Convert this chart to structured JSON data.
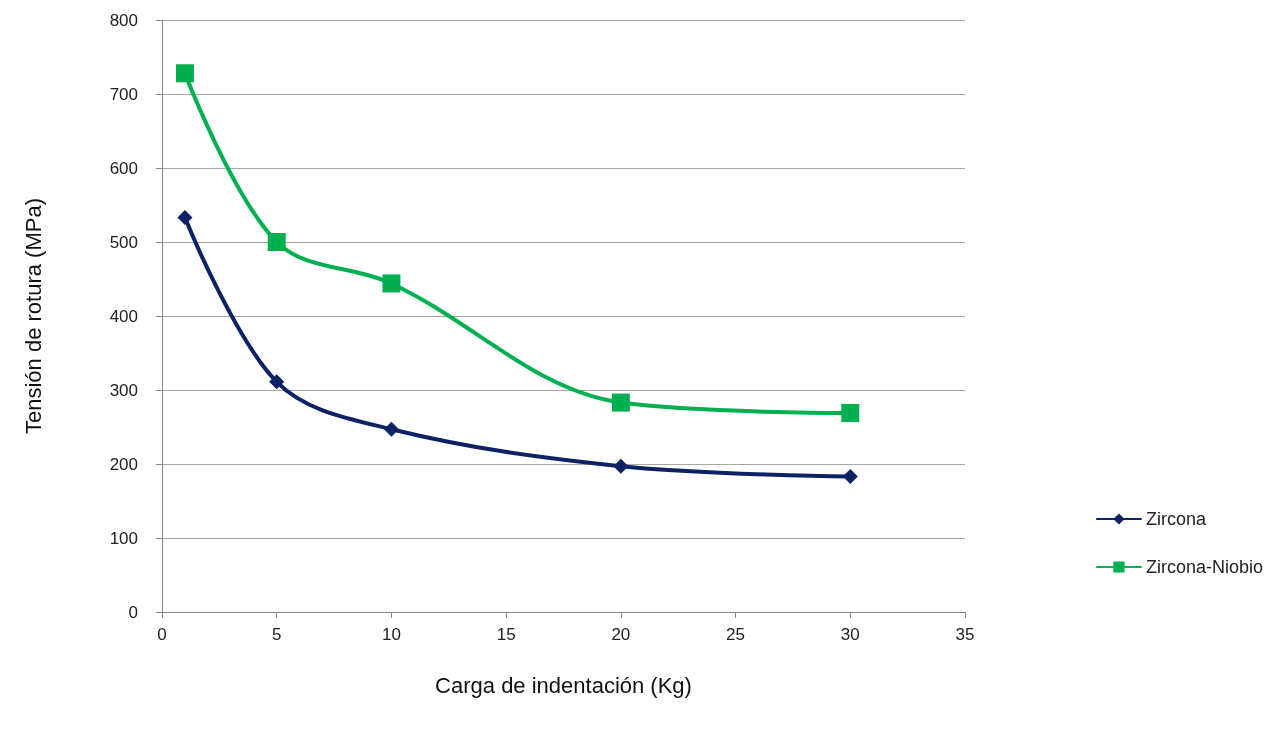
{
  "chart_data": {
    "type": "line",
    "xlabel": "Carga de indentación (Kg)",
    "ylabel": "Tensión de rotura (MPa)",
    "x": [
      1,
      5,
      10,
      20,
      30
    ],
    "series": [
      {
        "name": "Zircona",
        "color": "#0c2265",
        "marker": "diamond",
        "values": [
          533,
          311,
          247,
          197,
          183
        ]
      },
      {
        "name": "Zircona-Niobio",
        "color": "#00b050",
        "marker": "square",
        "values": [
          728,
          500,
          444,
          283,
          269
        ]
      }
    ],
    "xlim": [
      0,
      35
    ],
    "xticks": [
      0,
      5,
      10,
      15,
      20,
      25,
      30,
      35
    ],
    "ylim": [
      0,
      800
    ],
    "yticks": [
      0,
      100,
      200,
      300,
      400,
      500,
      600,
      700,
      800
    ],
    "grid": "y",
    "legend": "right",
    "line_style": "solid"
  }
}
